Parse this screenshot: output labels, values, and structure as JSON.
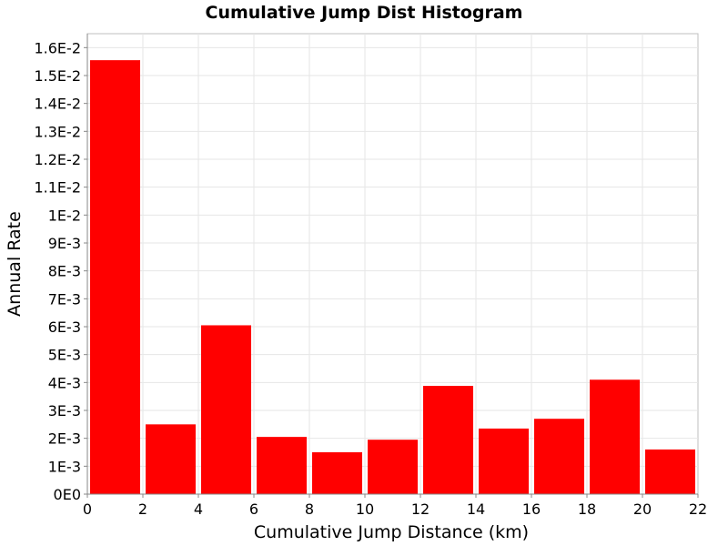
{
  "chart_data": {
    "type": "bar",
    "title": "Cumulative Jump Dist Histogram",
    "xlabel": "Cumulative Jump Distance (km)",
    "ylabel": "Annual Rate",
    "xlim": [
      0,
      22
    ],
    "ylim": [
      0,
      0.0165
    ],
    "x_ticks": [
      0,
      2,
      4,
      6,
      8,
      10,
      12,
      14,
      16,
      18,
      20,
      22
    ],
    "x_tick_labels": [
      "0",
      "2",
      "4",
      "6",
      "8",
      "10",
      "12",
      "14",
      "16",
      "18",
      "20",
      "22"
    ],
    "y_ticks": [
      0,
      0.001,
      0.002,
      0.003,
      0.004,
      0.005,
      0.006,
      0.007,
      0.008,
      0.009,
      0.01,
      0.011,
      0.012,
      0.013,
      0.014,
      0.015,
      0.016
    ],
    "y_tick_labels": [
      "0E0",
      "1E-3",
      "2E-3",
      "3E-3",
      "4E-3",
      "5E-3",
      "6E-3",
      "7E-3",
      "8E-3",
      "9E-3",
      "1E-2",
      "1.1E-2",
      "1.2E-2",
      "1.3E-2",
      "1.4E-2",
      "1.5E-2",
      "1.6E-2"
    ],
    "grid": true,
    "bar_color": "#ff0000",
    "bins": [
      {
        "x_start": 0,
        "x_end": 2,
        "value": 0.01555
      },
      {
        "x_start": 2,
        "x_end": 4,
        "value": 0.0025
      },
      {
        "x_start": 4,
        "x_end": 6,
        "value": 0.00605
      },
      {
        "x_start": 6,
        "x_end": 8,
        "value": 0.00205
      },
      {
        "x_start": 8,
        "x_end": 10,
        "value": 0.0015
      },
      {
        "x_start": 10,
        "x_end": 12,
        "value": 0.00195
      },
      {
        "x_start": 12,
        "x_end": 14,
        "value": 0.00388
      },
      {
        "x_start": 14,
        "x_end": 16,
        "value": 0.00235
      },
      {
        "x_start": 16,
        "x_end": 18,
        "value": 0.0027
      },
      {
        "x_start": 18,
        "x_end": 20,
        "value": 0.0041
      },
      {
        "x_start": 20,
        "x_end": 22,
        "value": 0.0016
      }
    ]
  }
}
